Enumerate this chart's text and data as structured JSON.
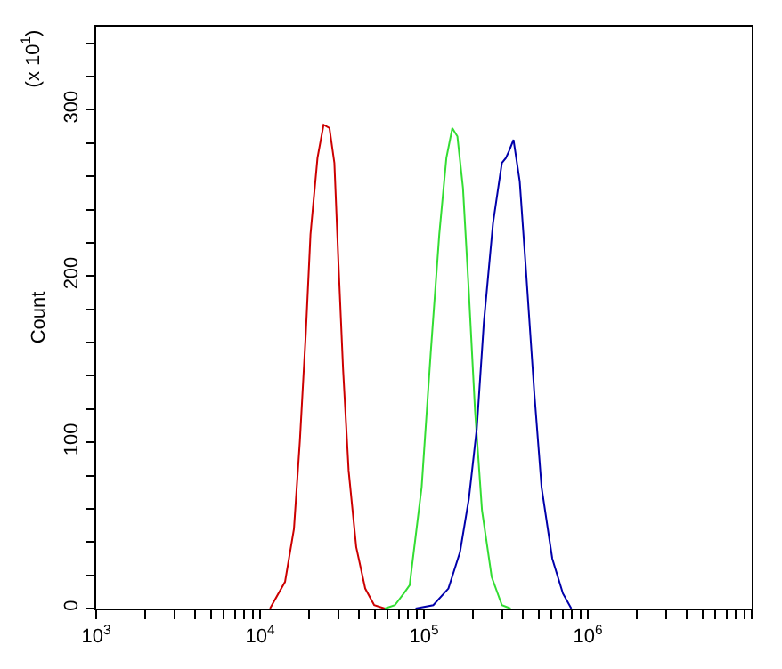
{
  "chart_data": {
    "type": "line",
    "ylabel": "Count",
    "annotations": [
      "(x 10$^{1}$)"
    ],
    "log": "x",
    "legend": false,
    "marker": "none",
    "line_style": "solid",
    "xlim": [
      1000,
      10000000
    ],
    "ylim": [
      0,
      350
    ],
    "xticks": [
      {
        "value": 1000,
        "label": "10$^{3}$"
      },
      {
        "value": 2000,
        "label": null
      },
      {
        "value": 3000,
        "label": null
      },
      {
        "value": 4000,
        "label": null
      },
      {
        "value": 5000,
        "label": null
      },
      {
        "value": 6000,
        "label": null
      },
      {
        "value": 7000,
        "label": null
      },
      {
        "value": 8000,
        "label": null
      },
      {
        "value": 9000,
        "label": null
      },
      {
        "value": 10000,
        "label": "10$^{4}$"
      },
      {
        "value": 20000,
        "label": null
      },
      {
        "value": 30000,
        "label": null
      },
      {
        "value": 40000,
        "label": null
      },
      {
        "value": 50000,
        "label": null
      },
      {
        "value": 60000,
        "label": null
      },
      {
        "value": 70000,
        "label": null
      },
      {
        "value": 80000,
        "label": null
      },
      {
        "value": 90000,
        "label": null
      },
      {
        "value": 100000,
        "label": "10$^{5}$"
      },
      {
        "value": 200000,
        "label": null
      },
      {
        "value": 300000,
        "label": null
      },
      {
        "value": 400000,
        "label": null
      },
      {
        "value": 500000,
        "label": null
      },
      {
        "value": 600000,
        "label": null
      },
      {
        "value": 700000,
        "label": null
      },
      {
        "value": 800000,
        "label": null
      },
      {
        "value": 900000,
        "label": null
      },
      {
        "value": 1000000,
        "label": "10$^{6}$"
      },
      {
        "value": 2000000,
        "label": null
      },
      {
        "value": 3000000,
        "label": null
      },
      {
        "value": 4000000,
        "label": null
      },
      {
        "value": 5000000,
        "label": null
      },
      {
        "value": 6000000,
        "label": null
      },
      {
        "value": 7000000,
        "label": null
      },
      {
        "value": 8000000,
        "label": null
      },
      {
        "value": 9000000,
        "label": null
      },
      {
        "value": 10000000,
        "label": null
      }
    ],
    "yticks": [
      0,
      {
        "value": 20,
        "label": null
      },
      {
        "value": 40,
        "label": null
      },
      {
        "value": 60,
        "label": null
      },
      {
        "value": 80,
        "label": null
      },
      100,
      {
        "value": 120,
        "label": null
      },
      {
        "value": 140,
        "label": null
      },
      {
        "value": 160,
        "label": null
      },
      {
        "value": 180,
        "label": null
      },
      200,
      {
        "value": 220,
        "label": null
      },
      {
        "value": 240,
        "label": null
      },
      {
        "value": 260,
        "label": null
      },
      {
        "value": 280,
        "label": null
      },
      300,
      {
        "value": 320,
        "label": null
      },
      {
        "value": 340,
        "label": null
      }
    ],
    "series": [
      {
        "color": "#cc0000",
        "x": [
          11500,
          14200,
          16100,
          17500,
          19000,
          20300,
          22400,
          24400,
          26500,
          28400,
          30100,
          32100,
          34700,
          38600,
          43800,
          49700,
          57700
        ],
        "values": [
          0,
          16,
          48,
          101,
          165,
          225,
          271,
          291,
          289,
          268,
          207,
          144,
          83,
          37,
          12,
          2,
          0
        ]
      },
      {
        "color": "#33dd33",
        "x": [
          57700,
          66500,
          75300,
          81800,
          96800,
          110000,
          124000,
          137000,
          149000,
          160000,
          173000,
          188000,
          205000,
          226000,
          259000,
          299000,
          338000
        ],
        "values": [
          0,
          2,
          9,
          14,
          73,
          154,
          225,
          271,
          289,
          284,
          253,
          190,
          119,
          59,
          19,
          2,
          0
        ]
      },
      {
        "color": "#0000aa",
        "x": [
          88900,
          114000,
          141000,
          166000,
          188000,
          210000,
          232000,
          264000,
          299000,
          316000,
          330000,
          352000,
          384000,
          417000,
          472000,
          522000,
          607000,
          705000,
          793000
        ],
        "values": [
          0,
          2,
          12,
          34,
          66,
          108,
          172,
          232,
          268,
          271,
          275,
          282,
          257,
          207,
          129,
          73,
          30,
          9,
          0
        ]
      }
    ]
  }
}
